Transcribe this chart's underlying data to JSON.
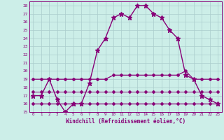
{
  "xlabel": "Windchill (Refroidissement éolien,°C)",
  "background_color": "#cceee8",
  "grid_color": "#aacccc",
  "line_color": "#880077",
  "x_hours": [
    0,
    1,
    2,
    3,
    4,
    5,
    6,
    7,
    8,
    9,
    10,
    11,
    12,
    13,
    14,
    15,
    16,
    17,
    18,
    19,
    20,
    21,
    22,
    23
  ],
  "temp_line": [
    17,
    17,
    19,
    16.5,
    15,
    16,
    16,
    18.5,
    22.5,
    24,
    26.5,
    27,
    26.5,
    28,
    28,
    27,
    26.5,
    25,
    24,
    19.5,
    19,
    17,
    16.5,
    16
  ],
  "windchill_min": [
    16,
    16,
    16,
    16,
    16,
    16,
    16,
    16,
    16,
    16,
    16,
    16,
    16,
    16,
    16,
    16,
    16,
    16,
    16,
    16,
    16,
    16,
    16,
    16
  ],
  "windchill_max": [
    19,
    19,
    19,
    19,
    19,
    19,
    19,
    19,
    19,
    19,
    19.5,
    19.5,
    19.5,
    19.5,
    19.5,
    19.5,
    19.5,
    19.5,
    19.5,
    20,
    19,
    19,
    19,
    19
  ],
  "windchill_mean": [
    17.5,
    17.5,
    17.5,
    17.5,
    17.5,
    17.5,
    17.5,
    17.5,
    17.5,
    17.5,
    17.5,
    17.5,
    17.5,
    17.5,
    17.5,
    17.5,
    17.5,
    17.5,
    17.5,
    17.5,
    17.5,
    17.5,
    17.5,
    17.5
  ],
  "ylim": [
    15,
    28.5
  ],
  "xlim": [
    -0.5,
    23.5
  ],
  "yticks": [
    15,
    16,
    17,
    18,
    19,
    20,
    21,
    22,
    23,
    24,
    25,
    26,
    27,
    28
  ],
  "xticks": [
    0,
    1,
    2,
    3,
    4,
    5,
    6,
    7,
    8,
    9,
    10,
    11,
    12,
    13,
    14,
    15,
    16,
    17,
    18,
    19,
    20,
    21,
    22,
    23
  ]
}
